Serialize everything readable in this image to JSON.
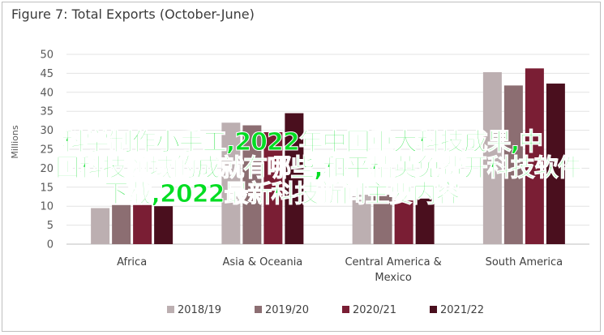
{
  "chart_data": {
    "type": "bar",
    "title": "Figure 7: Total Exports (October-June)",
    "ylabel": "Millions",
    "ylim": [
      0,
      50
    ],
    "yticks": [
      0,
      5,
      10,
      15,
      20,
      25,
      30,
      35,
      40,
      45,
      50
    ],
    "grid": true,
    "legend_position": "bottom",
    "categories": [
      "Africa",
      "Asia & Oceania",
      "Central America & Mexico",
      "South America"
    ],
    "category_lines": [
      [
        "Africa"
      ],
      [
        "Asia & Oceania"
      ],
      [
        "Central America &",
        "Mexico"
      ],
      [
        "South America"
      ]
    ],
    "series": [
      {
        "name": "2018/19",
        "color": "#bcafb1",
        "values": [
          9.5,
          32.0,
          13.0,
          45.3
        ]
      },
      {
        "name": "2019/20",
        "color": "#8c6e72",
        "values": [
          10.3,
          31.3,
          13.0,
          41.8
        ]
      },
      {
        "name": "2020/21",
        "color": "#7a1e34",
        "values": [
          10.3,
          29.5,
          11.5,
          46.3
        ]
      },
      {
        "name": "2021/22",
        "color": "#4a0f1e",
        "values": [
          10.0,
          34.5,
          12.0,
          42.3
        ]
      }
    ]
  },
  "overlay": {
    "color": "#00dd22",
    "lines": [
      "科学制作小手工,2022年中国重大科技成果,中",
      "国科技领域的成就有哪些,和平精英免费开科技软件",
      "下载,2022最新科技新闻主要内容"
    ]
  }
}
